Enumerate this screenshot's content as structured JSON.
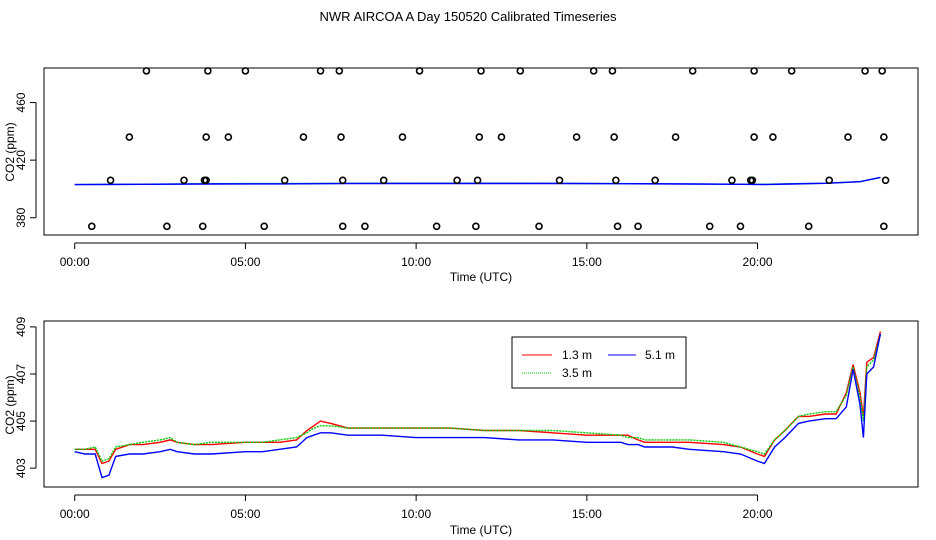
{
  "page": {
    "title": "NWR AIRCOA A  Day 150520  Calibrated Timeseries"
  },
  "colors": {
    "red": "#ff0000",
    "green": "#00cd00",
    "blue": "#0000ff",
    "teal": "#008b8b",
    "purple": "#9b30ff"
  },
  "chart_data": [
    {
      "type": "scatter",
      "title": "",
      "xlabel": "Time (UTC)",
      "ylabel": "CO2 (ppm)",
      "x_ticks": [
        0,
        5,
        10,
        15,
        20
      ],
      "x_tick_labels": [
        "00:00",
        "05:00",
        "10:00",
        "15:00",
        "20:00"
      ],
      "y_ticks": [
        380,
        420,
        460
      ],
      "y_tick_labels": [
        "380",
        "420",
        "460"
      ],
      "xlim": [
        -0.9,
        24.7
      ],
      "ylim": [
        368,
        484
      ],
      "points": [
        [
          0.5,
          374
        ],
        [
          2.7,
          374
        ],
        [
          3.75,
          374
        ],
        [
          5.55,
          374
        ],
        [
          7.85,
          374
        ],
        [
          8.5,
          374
        ],
        [
          10.6,
          374
        ],
        [
          11.75,
          374
        ],
        [
          13.6,
          374
        ],
        [
          15.9,
          374
        ],
        [
          16.5,
          374
        ],
        [
          18.6,
          374
        ],
        [
          19.5,
          374
        ],
        [
          21.5,
          374
        ],
        [
          23.7,
          374
        ],
        [
          1.05,
          406
        ],
        [
          3.2,
          406
        ],
        [
          3.8,
          406
        ],
        [
          3.85,
          406
        ],
        [
          6.15,
          406
        ],
        [
          7.85,
          406
        ],
        [
          9.05,
          406
        ],
        [
          11.2,
          406
        ],
        [
          11.8,
          406
        ],
        [
          14.2,
          406
        ],
        [
          15.85,
          406
        ],
        [
          17.0,
          406
        ],
        [
          19.25,
          406
        ],
        [
          19.8,
          406
        ],
        [
          19.85,
          406
        ],
        [
          22.1,
          406
        ],
        [
          23.75,
          406
        ],
        [
          1.6,
          436
        ],
        [
          3.85,
          436
        ],
        [
          4.5,
          436
        ],
        [
          6.7,
          436
        ],
        [
          7.8,
          436
        ],
        [
          9.6,
          436
        ],
        [
          11.85,
          436
        ],
        [
          12.5,
          436
        ],
        [
          14.7,
          436
        ],
        [
          15.8,
          436
        ],
        [
          17.6,
          436
        ],
        [
          19.9,
          436
        ],
        [
          20.45,
          436
        ],
        [
          22.65,
          436
        ],
        [
          23.7,
          436
        ],
        [
          2.1,
          482
        ],
        [
          3.9,
          482
        ],
        [
          5.0,
          482
        ],
        [
          7.2,
          482
        ],
        [
          7.75,
          482
        ],
        [
          10.1,
          482
        ],
        [
          11.9,
          482
        ],
        [
          13.05,
          482
        ],
        [
          15.2,
          482
        ],
        [
          15.75,
          482
        ],
        [
          18.1,
          482
        ],
        [
          19.9,
          482
        ],
        [
          21.0,
          482
        ],
        [
          23.15,
          482
        ],
        [
          23.65,
          482
        ]
      ],
      "series": [
        {
          "name": "teal",
          "color": "#008b8b",
          "x": [
            0,
            2,
            4,
            6,
            8,
            10,
            12,
            14,
            16,
            18,
            19.5,
            20.2,
            21,
            22,
            23,
            23.6
          ],
          "y": [
            403,
            403.3,
            403.6,
            403.7,
            403.9,
            404,
            404,
            403.9,
            403.7,
            403.5,
            403.3,
            403.2,
            403.6,
            404,
            405,
            408
          ]
        },
        {
          "name": "blue",
          "color": "#0000ff",
          "x": [
            0,
            2,
            4,
            6,
            8,
            10,
            12,
            14,
            16,
            18,
            19.5,
            20.2,
            21,
            22,
            23,
            23.6
          ],
          "y": [
            403,
            403.2,
            403.4,
            403.5,
            403.7,
            403.8,
            403.8,
            403.8,
            403.6,
            403.4,
            403.2,
            403.0,
            403.4,
            403.9,
            405,
            408
          ]
        }
      ]
    },
    {
      "type": "line",
      "title": "",
      "xlabel": "Time (UTC)",
      "ylabel": "CO2 (ppm)",
      "x_ticks": [
        0,
        5,
        10,
        15,
        20
      ],
      "x_tick_labels": [
        "00:00",
        "05:00",
        "10:00",
        "15:00",
        "20:00"
      ],
      "y_ticks": [
        403,
        405,
        407,
        409
      ],
      "y_tick_labels": [
        "403",
        "405",
        "407",
        "409"
      ],
      "xlim": [
        -0.9,
        24.7
      ],
      "ylim": [
        402.2,
        409.25
      ],
      "legend": {
        "position": "top-center",
        "entries": [
          {
            "label": "1.3 m",
            "color": "#ff0000"
          },
          {
            "label": "3.5 m",
            "color": "#00cd00"
          },
          {
            "label": "5.1 m",
            "color": "#0000ff"
          }
        ]
      },
      "series": [
        {
          "name": "1.3 m",
          "color": "#ff0000",
          "x": [
            0,
            0.3,
            0.6,
            0.8,
            1.0,
            1.2,
            1.6,
            2.0,
            2.5,
            2.8,
            3.0,
            3.5,
            4.0,
            5.0,
            5.5,
            6.0,
            6.5,
            6.8,
            7.0,
            7.2,
            7.5,
            8.0,
            9.0,
            10.0,
            11.0,
            12.0,
            13.0,
            14.0,
            15.0,
            16.0,
            16.2,
            16.5,
            16.7,
            17.0,
            17.5,
            18.0,
            19.0,
            19.5,
            20.0,
            20.2,
            20.5,
            20.8,
            21.0,
            21.2,
            21.5,
            22.0,
            22.3,
            22.6,
            22.8,
            23.0,
            23.1,
            23.2,
            23.4,
            23.6
          ],
          "y": [
            403.8,
            403.8,
            403.8,
            403.2,
            403.3,
            403.8,
            404.0,
            404.0,
            404.1,
            404.2,
            404.1,
            404.0,
            404.0,
            404.1,
            404.1,
            404.1,
            404.2,
            404.6,
            404.8,
            405.0,
            404.9,
            404.7,
            404.7,
            404.7,
            404.7,
            404.6,
            404.6,
            404.5,
            404.4,
            404.4,
            404.4,
            404.2,
            404.1,
            404.1,
            404.1,
            404.1,
            404.0,
            403.9,
            403.6,
            403.5,
            404.2,
            404.6,
            404.9,
            405.2,
            405.2,
            405.3,
            405.3,
            406.2,
            407.4,
            406.2,
            405.2,
            407.5,
            407.7,
            408.8
          ]
        },
        {
          "name": "3.5 m",
          "color": "#00cd00",
          "x": [
            0,
            0.3,
            0.6,
            0.8,
            1.0,
            1.2,
            1.6,
            2.0,
            2.5,
            2.8,
            3.0,
            3.5,
            4.0,
            5.0,
            5.5,
            6.0,
            6.5,
            6.8,
            7.0,
            7.2,
            7.5,
            8.0,
            9.0,
            10.0,
            11.0,
            12.0,
            13.0,
            14.0,
            15.0,
            16.0,
            16.2,
            16.5,
            16.7,
            17.0,
            17.5,
            18.0,
            19.0,
            19.5,
            20.0,
            20.2,
            20.5,
            20.8,
            21.0,
            21.2,
            21.5,
            22.0,
            22.3,
            22.6,
            22.8,
            23.0,
            23.1,
            23.2,
            23.4,
            23.6
          ],
          "y": [
            403.8,
            403.8,
            403.9,
            403.3,
            403.4,
            403.9,
            404.0,
            404.1,
            404.2,
            404.3,
            404.1,
            404.0,
            404.1,
            404.1,
            404.1,
            404.2,
            404.3,
            404.5,
            404.7,
            404.8,
            404.8,
            404.7,
            404.7,
            404.7,
            404.7,
            404.6,
            404.6,
            404.6,
            404.5,
            404.4,
            404.3,
            404.3,
            404.2,
            404.2,
            404.2,
            404.2,
            404.1,
            403.9,
            403.7,
            403.6,
            404.2,
            404.6,
            404.9,
            405.2,
            405.3,
            405.4,
            405.4,
            406.1,
            407.3,
            406.0,
            405.0,
            407.3,
            407.6,
            408.7
          ]
        },
        {
          "name": "5.1 m",
          "color": "#0000ff",
          "x": [
            0,
            0.3,
            0.6,
            0.8,
            1.0,
            1.2,
            1.6,
            2.0,
            2.5,
            2.8,
            3.0,
            3.5,
            4.0,
            5.0,
            5.5,
            6.0,
            6.5,
            6.8,
            7.0,
            7.2,
            7.5,
            8.0,
            9.0,
            10.0,
            11.0,
            12.0,
            13.0,
            14.0,
            15.0,
            16.0,
            16.2,
            16.5,
            16.7,
            17.0,
            17.5,
            18.0,
            19.0,
            19.5,
            20.0,
            20.2,
            20.5,
            20.8,
            21.0,
            21.2,
            21.5,
            22.0,
            22.3,
            22.6,
            22.8,
            23.0,
            23.1,
            23.2,
            23.4,
            23.6
          ],
          "y": [
            403.7,
            403.6,
            403.6,
            402.6,
            402.7,
            403.5,
            403.6,
            403.6,
            403.7,
            403.8,
            403.7,
            403.6,
            403.6,
            403.7,
            403.7,
            403.8,
            403.9,
            404.3,
            404.4,
            404.5,
            404.5,
            404.4,
            404.4,
            404.3,
            404.3,
            404.3,
            404.2,
            404.2,
            404.1,
            404.1,
            404.0,
            404.0,
            403.9,
            403.9,
            403.9,
            403.8,
            403.7,
            403.6,
            403.3,
            403.2,
            403.9,
            404.3,
            404.6,
            404.9,
            405.0,
            405.1,
            405.1,
            405.6,
            407.2,
            405.7,
            404.3,
            407.0,
            407.3,
            408.7
          ]
        }
      ]
    }
  ]
}
